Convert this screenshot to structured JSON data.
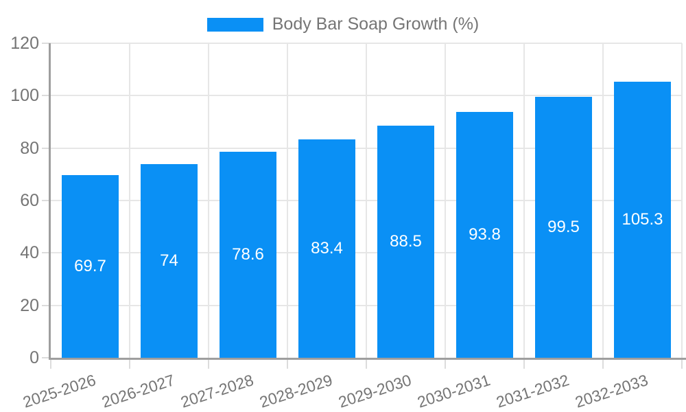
{
  "legend": {
    "label": "Body Bar Soap Growth (%)"
  },
  "colors": {
    "bar": "#0a90f5",
    "axis_text": "#757575",
    "gridline": "#e6e6e6",
    "tick": "#dcdcdc",
    "axis_line": "#9e9e9e",
    "bar_label_text": "#ffffff",
    "background": "#ffffff"
  },
  "chart_data": {
    "type": "bar",
    "title": "",
    "legend_position": "top-center",
    "legend_entries": [
      "Body Bar Soap Growth (%)"
    ],
    "categories": [
      "2025-2026",
      "2026-2027",
      "2027-2028",
      "2028-2029",
      "2029-2030",
      "2030-2031",
      "2031-2032",
      "2032-2033"
    ],
    "series": [
      {
        "name": "Body Bar Soap Growth (%)",
        "color": "#0a90f5",
        "values": [
          69.7,
          74,
          78.6,
          83.4,
          88.5,
          93.8,
          99.5,
          105.3
        ],
        "value_labels": [
          "69.7",
          "74",
          "78.6",
          "83.4",
          "88.5",
          "93.8",
          "99.5",
          "105.3"
        ]
      }
    ],
    "value_label_position": "inside-center",
    "xlabel": "",
    "ylabel": "",
    "ylim": [
      0,
      120
    ],
    "y_ticks": [
      0,
      20,
      40,
      60,
      80,
      100,
      120
    ],
    "x_tick_rotation_deg": -18,
    "grid": true,
    "grid_vertical": true
  }
}
